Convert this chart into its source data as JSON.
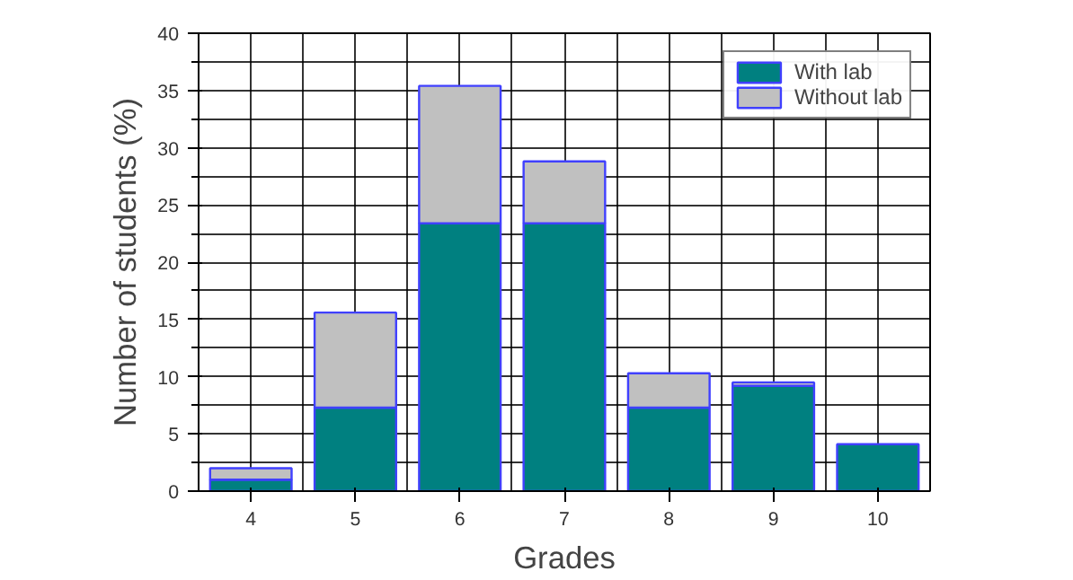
{
  "chart_data": {
    "type": "bar",
    "stacked": true,
    "xlabel": "Grades",
    "ylabel": "Number of students (%)",
    "categories": [
      "4",
      "5",
      "6",
      "7",
      "8",
      "9",
      "10"
    ],
    "series": [
      {
        "name": "With lab",
        "color": "#008080",
        "values": [
          1.0,
          7.3,
          23.4,
          23.4,
          7.3,
          9.2,
          4.1
        ]
      },
      {
        "name": "Without lab",
        "color": "#c0c0c0",
        "values": [
          1.0,
          8.3,
          12.0,
          5.4,
          3.0,
          0.3,
          null
        ]
      }
    ],
    "ylim": [
      0,
      40
    ],
    "yticks": [
      0,
      5,
      10,
      15,
      20,
      25,
      30,
      35,
      40
    ],
    "grid": true,
    "legend": "top right"
  }
}
